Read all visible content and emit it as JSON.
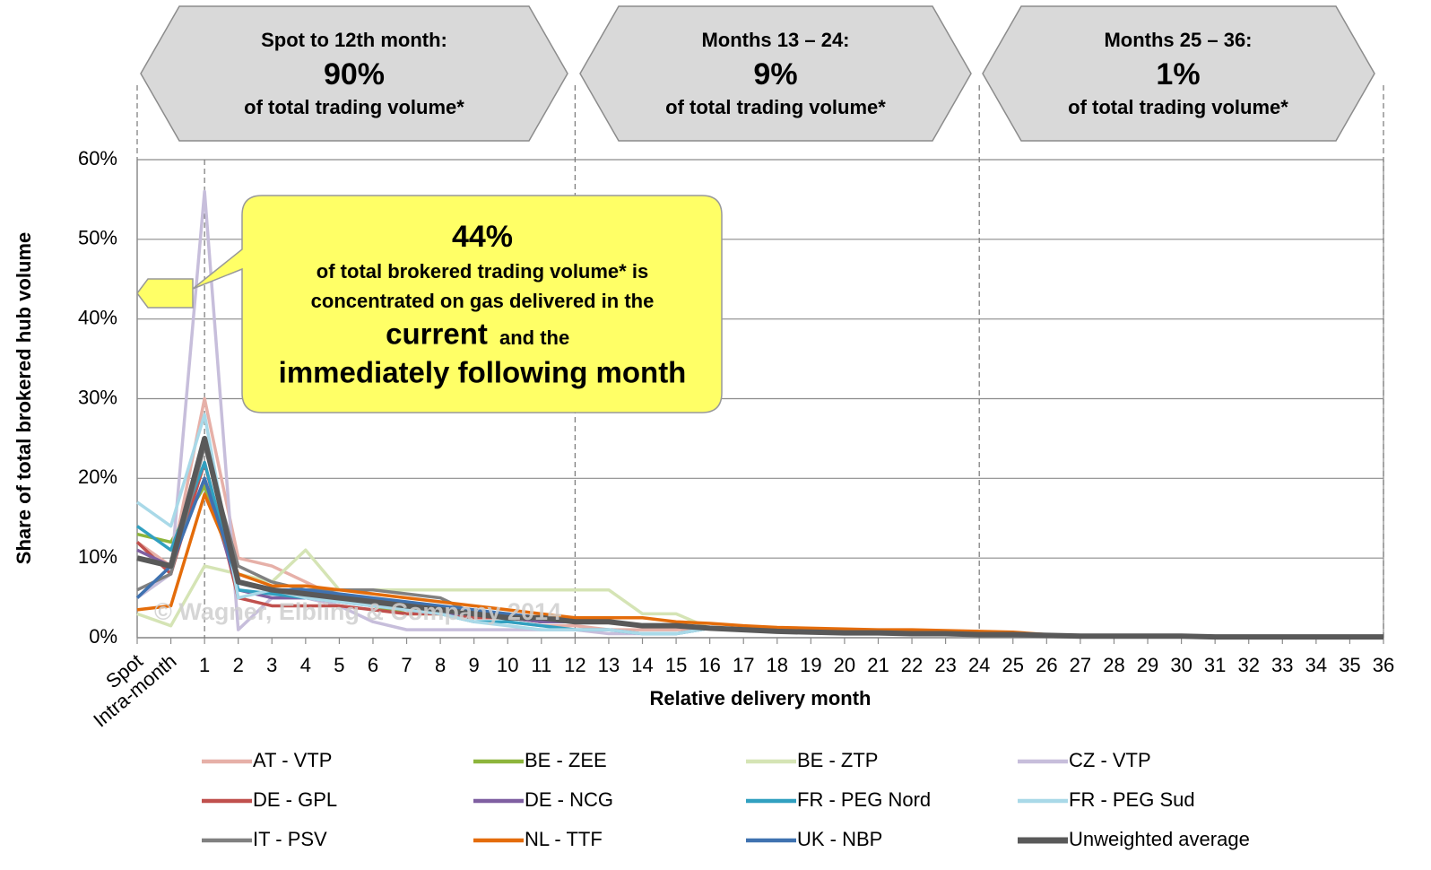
{
  "chart_data": {
    "type": "line",
    "x_label": "Relative delivery month",
    "y_label": "Share of total brokered hub volume",
    "watermark": "© Wagner, Elbling & Company 2014",
    "banners": [
      {
        "title": "Spot to 12th month:",
        "value": "90%",
        "note": "of total trading volume*"
      },
      {
        "title": "Months 13 – 24:",
        "value": "9%",
        "note": "of total trading volume*"
      },
      {
        "title": "Months 25 – 36:",
        "value": "1%",
        "note": "of total trading volume*"
      }
    ],
    "callout": {
      "value": "44%",
      "line1": "of total brokered trading volume* is",
      "line2": "concentrated on gas delivered in the",
      "emph1": "current",
      "line3": "and the",
      "emph2": "immediately following month"
    },
    "categories": [
      "Spot",
      "Intra-month",
      "1",
      "2",
      "3",
      "4",
      "5",
      "6",
      "7",
      "8",
      "9",
      "10",
      "11",
      "12",
      "13",
      "14",
      "15",
      "16",
      "17",
      "18",
      "19",
      "20",
      "21",
      "22",
      "23",
      "24",
      "25",
      "26",
      "27",
      "28",
      "29",
      "30",
      "31",
      "32",
      "33",
      "34",
      "35",
      "36"
    ],
    "ylim": [
      0,
      60
    ],
    "yticks": [
      {
        "value": 0,
        "label": "0%"
      },
      {
        "value": 10,
        "label": "10%"
      },
      {
        "value": 20,
        "label": "20%"
      },
      {
        "value": 30,
        "label": "30%"
      },
      {
        "value": 40,
        "label": "40%"
      },
      {
        "value": 50,
        "label": "50%"
      },
      {
        "value": 60,
        "label": "60%"
      }
    ],
    "grid": true,
    "series": [
      {
        "name": "AT - VTP",
        "color": "#e6b0a8",
        "values": [
          12,
          9,
          30,
          10,
          9,
          7,
          5,
          4,
          3,
          3,
          2,
          2,
          1.5,
          1.5,
          1,
          1,
          1,
          1.2,
          1,
          0.8,
          0.7,
          0.6,
          0.5,
          0.5,
          0.4,
          0.4,
          0.3,
          0.2,
          0.2,
          0.2,
          0.1,
          0.1,
          0.1,
          0.1,
          0.1,
          0.1,
          0.1,
          0.1
        ]
      },
      {
        "name": "BE - ZEE",
        "color": "#8db53c",
        "values": [
          13,
          12,
          19,
          7,
          6,
          5,
          5,
          4,
          3,
          3,
          2.5,
          2.5,
          2,
          2,
          2,
          1.5,
          1.5,
          1.2,
          1,
          0.8,
          0.7,
          0.6,
          0.5,
          0.5,
          0.4,
          0.4,
          0.3,
          0.2,
          0.2,
          0.2,
          0.1,
          0.1,
          0.1,
          0.1,
          0.1,
          0.1,
          0.1,
          0.1
        ]
      },
      {
        "name": "BE - ZTP",
        "color": "#d5e4b5",
        "values": [
          3,
          1.5,
          9,
          8,
          7,
          11,
          6,
          6,
          6,
          6,
          6,
          6,
          6,
          6,
          6,
          3,
          3,
          1.2,
          1,
          0.8,
          0.7,
          0.6,
          0.5,
          0.5,
          0.4,
          0.4,
          0.3,
          0.2,
          0.2,
          0.2,
          0.1,
          0.1,
          0.1,
          0.1,
          0.1,
          0.1,
          0.1,
          0.1
        ]
      },
      {
        "name": "CZ - VTP",
        "color": "#c7bedb",
        "values": [
          5,
          8,
          56,
          1,
          5,
          5,
          4,
          2,
          1,
          1,
          1,
          1,
          1,
          1,
          0.5,
          0.5,
          0.5,
          1.2,
          1,
          0.8,
          0.7,
          0.6,
          0.5,
          0.5,
          0.4,
          0.4,
          0.3,
          0.2,
          0.2,
          0.2,
          0.1,
          0.1,
          0.1,
          0.1,
          0.1,
          0.1,
          0.1,
          0.1
        ]
      },
      {
        "name": "DE - GPL",
        "color": "#c0504d",
        "values": [
          12,
          8,
          22,
          5,
          4,
          4,
          4,
          3.5,
          3,
          3,
          2.5,
          2.5,
          2,
          2,
          2,
          1.5,
          1.5,
          1.2,
          1,
          0.8,
          0.7,
          0.6,
          0.5,
          0.5,
          0.4,
          0.4,
          0.3,
          0.2,
          0.2,
          0.2,
          0.1,
          0.1,
          0.1,
          0.1,
          0.1,
          0.1,
          0.1,
          0.1
        ]
      },
      {
        "name": "DE - NCG",
        "color": "#7f5fa1",
        "values": [
          11,
          9,
          20,
          6,
          5,
          5,
          4.5,
          4,
          3.5,
          3,
          3,
          2.5,
          2,
          2,
          2,
          1.5,
          1.5,
          1.2,
          1,
          0.8,
          0.7,
          0.6,
          0.5,
          0.5,
          0.4,
          0.4,
          0.3,
          0.2,
          0.2,
          0.2,
          0.1,
          0.1,
          0.1,
          0.1,
          0.1,
          0.1,
          0.1,
          0.1
        ]
      },
      {
        "name": "FR - PEG Nord",
        "color": "#31a0c0",
        "values": [
          14,
          11,
          22,
          6,
          5.5,
          5,
          5,
          4.5,
          4,
          3,
          2,
          2,
          1.5,
          1,
          1,
          0.5,
          0.5,
          1.2,
          1,
          0.8,
          0.7,
          0.6,
          0.5,
          0.5,
          0.4,
          0.4,
          0.3,
          0.2,
          0.2,
          0.2,
          0.1,
          0.1,
          0.1,
          0.1,
          0.1,
          0.1,
          0.1,
          0.1
        ]
      },
      {
        "name": "FR - PEG Sud",
        "color": "#a9d9e8",
        "values": [
          17,
          14,
          28,
          5,
          6,
          5,
          4.5,
          4,
          3.5,
          3,
          2,
          1.5,
          1,
          1,
          1,
          0.5,
          0.5,
          1.2,
          1,
          0.8,
          0.7,
          0.6,
          0.5,
          0.5,
          0.4,
          0.4,
          0.3,
          0.2,
          0.2,
          0.2,
          0.1,
          0.1,
          0.1,
          0.1,
          0.1,
          0.1,
          0.1,
          0.1
        ]
      },
      {
        "name": "IT - PSV",
        "color": "#808080",
        "values": [
          6,
          8,
          24,
          9,
          7,
          6,
          6,
          6,
          5.5,
          5,
          3,
          3,
          2.5,
          2,
          2,
          1.5,
          1.5,
          1.2,
          1,
          0.8,
          0.7,
          0.6,
          0.5,
          0.5,
          0.4,
          0.4,
          0.3,
          0.2,
          0.2,
          0.2,
          0.1,
          0.1,
          0.1,
          0.1,
          0.1,
          0.1,
          0.1,
          0.1
        ]
      },
      {
        "name": "NL - TTF",
        "color": "#e46c0a",
        "values": [
          3.5,
          4,
          18,
          8,
          6.5,
          6.5,
          6,
          5.5,
          5,
          4.5,
          4,
          3.5,
          3,
          2.5,
          2.5,
          2.5,
          2,
          1.8,
          1.5,
          1.3,
          1.2,
          1.1,
          1,
          1,
          0.9,
          0.8,
          0.7,
          0.4,
          0.3,
          0.3,
          0.2,
          0.2,
          0.2,
          0.2,
          0.2,
          0.2,
          0.2,
          0.2
        ]
      },
      {
        "name": "UK - NBP",
        "color": "#3f72b0",
        "values": [
          5,
          9,
          20,
          7,
          6,
          6,
          5.5,
          5,
          4.5,
          4,
          3.5,
          3,
          2.5,
          2,
          2,
          1.5,
          1.5,
          1.2,
          1,
          0.8,
          0.7,
          0.6,
          0.5,
          0.5,
          0.4,
          0.4,
          0.3,
          0.2,
          0.2,
          0.2,
          0.1,
          0.1,
          0.1,
          0.1,
          0.1,
          0.1,
          0.1,
          0.1
        ]
      },
      {
        "name": "Unweighted average",
        "color": "#595959",
        "values": [
          10,
          9,
          25,
          7,
          6,
          5.5,
          5,
          4.5,
          4,
          3.5,
          3,
          2.5,
          2.5,
          2,
          2,
          1.5,
          1.5,
          1.2,
          1,
          0.8,
          0.7,
          0.6,
          0.6,
          0.5,
          0.5,
          0.4,
          0.4,
          0.3,
          0.2,
          0.2,
          0.2,
          0.2,
          0.1,
          0.1,
          0.1,
          0.1,
          0.1,
          0.1
        ]
      }
    ]
  }
}
